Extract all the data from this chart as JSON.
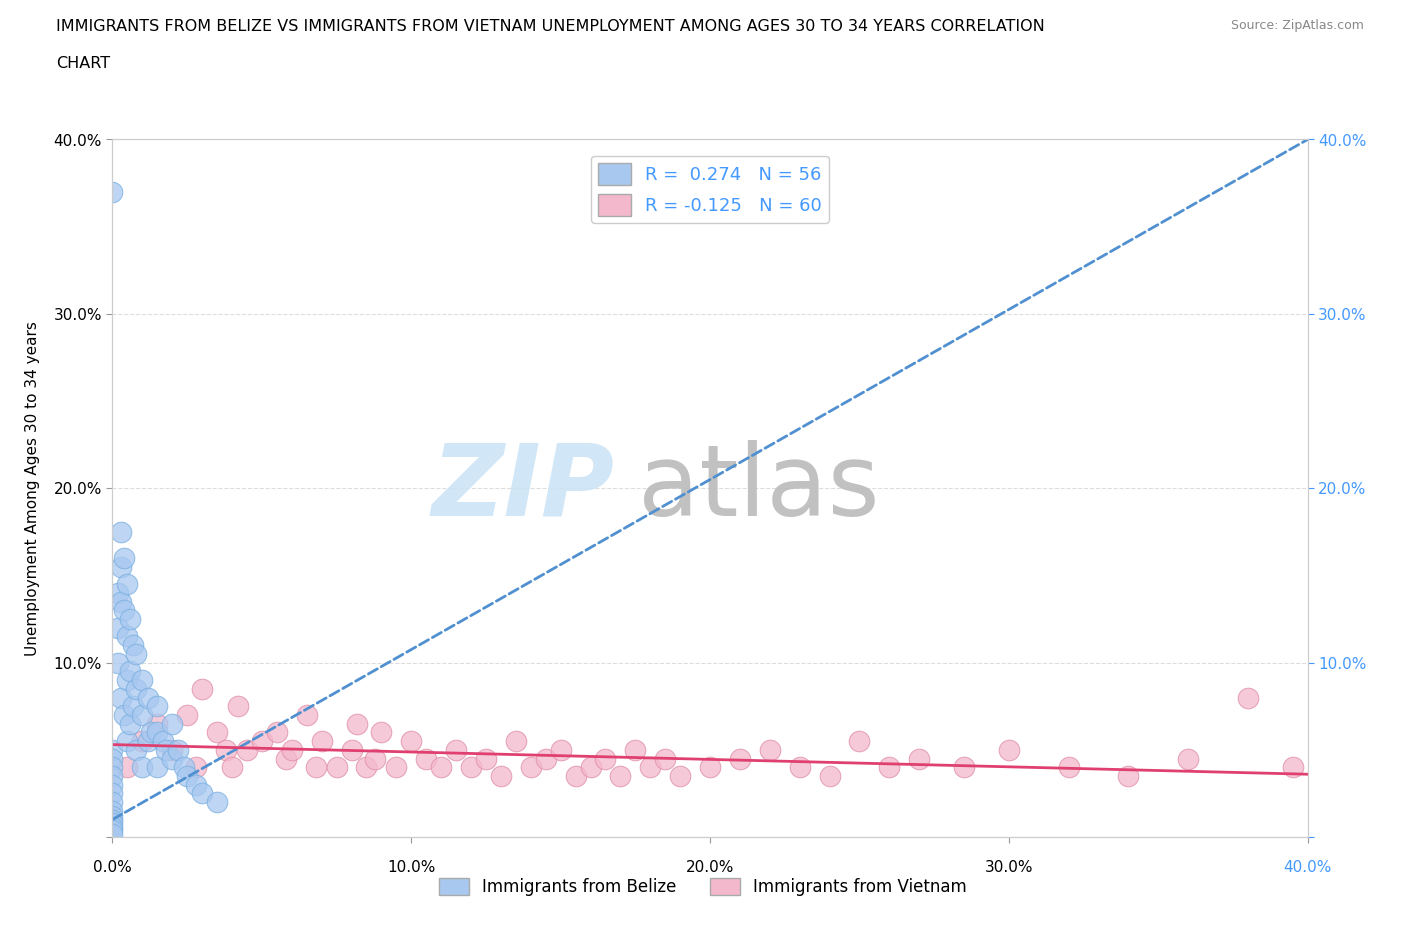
{
  "title_line1": "IMMIGRANTS FROM BELIZE VS IMMIGRANTS FROM VIETNAM UNEMPLOYMENT AMONG AGES 30 TO 34 YEARS CORRELATION",
  "title_line2": "CHART",
  "source": "Source: ZipAtlas.com",
  "ylabel": "Unemployment Among Ages 30 to 34 years",
  "belize_R": 0.274,
  "belize_N": 56,
  "vietnam_R": -0.125,
  "vietnam_N": 60,
  "xlim": [
    0.0,
    0.4
  ],
  "ylim": [
    -0.02,
    0.42
  ],
  "plot_ylim": [
    0.0,
    0.4
  ],
  "xticks": [
    0.0,
    0.1,
    0.2,
    0.3,
    0.4
  ],
  "yticks": [
    0.0,
    0.1,
    0.2,
    0.3,
    0.4
  ],
  "belize_color": "#a8c8f0",
  "belize_edge_color": "#7ab0e0",
  "vietnam_color": "#f4b8cc",
  "vietnam_edge_color": "#e090a8",
  "belize_line_color": "#5090d0",
  "vietnam_line_color": "#e04070",
  "right_axis_color": "#4499ff",
  "watermark_zip_color": "#cce4f5",
  "watermark_atlas_color": "#bbbbbb",
  "belize_x": [
    0.0,
    0.0,
    0.0,
    0.0,
    0.0,
    0.0,
    0.0,
    0.0,
    0.0,
    0.0,
    0.0,
    0.0,
    0.0,
    0.0,
    0.0,
    0.002,
    0.002,
    0.002,
    0.003,
    0.003,
    0.003,
    0.003,
    0.004,
    0.004,
    0.004,
    0.005,
    0.005,
    0.005,
    0.005,
    0.006,
    0.006,
    0.006,
    0.007,
    0.007,
    0.008,
    0.008,
    0.008,
    0.01,
    0.01,
    0.01,
    0.012,
    0.012,
    0.013,
    0.015,
    0.015,
    0.015,
    0.017,
    0.018,
    0.02,
    0.02,
    0.022,
    0.024,
    0.025,
    0.028,
    0.03,
    0.035
  ],
  "belize_y": [
    0.37,
    0.05,
    0.045,
    0.04,
    0.035,
    0.03,
    0.025,
    0.02,
    0.015,
    0.012,
    0.01,
    0.008,
    0.006,
    0.004,
    0.002,
    0.14,
    0.12,
    0.1,
    0.175,
    0.155,
    0.135,
    0.08,
    0.16,
    0.13,
    0.07,
    0.145,
    0.115,
    0.09,
    0.055,
    0.125,
    0.095,
    0.065,
    0.11,
    0.075,
    0.105,
    0.085,
    0.05,
    0.09,
    0.07,
    0.04,
    0.08,
    0.055,
    0.06,
    0.075,
    0.06,
    0.04,
    0.055,
    0.05,
    0.065,
    0.045,
    0.05,
    0.04,
    0.035,
    0.03,
    0.025,
    0.02
  ],
  "vietnam_x": [
    0.005,
    0.01,
    0.015,
    0.02,
    0.025,
    0.028,
    0.03,
    0.035,
    0.038,
    0.04,
    0.042,
    0.045,
    0.05,
    0.055,
    0.058,
    0.06,
    0.065,
    0.068,
    0.07,
    0.075,
    0.08,
    0.082,
    0.085,
    0.088,
    0.09,
    0.095,
    0.1,
    0.105,
    0.11,
    0.115,
    0.12,
    0.125,
    0.13,
    0.135,
    0.14,
    0.145,
    0.15,
    0.155,
    0.16,
    0.165,
    0.17,
    0.175,
    0.18,
    0.185,
    0.19,
    0.2,
    0.21,
    0.22,
    0.23,
    0.24,
    0.25,
    0.26,
    0.27,
    0.285,
    0.3,
    0.32,
    0.34,
    0.36,
    0.38,
    0.395
  ],
  "vietnam_y": [
    0.04,
    0.055,
    0.065,
    0.05,
    0.07,
    0.04,
    0.085,
    0.06,
    0.05,
    0.04,
    0.075,
    0.05,
    0.055,
    0.06,
    0.045,
    0.05,
    0.07,
    0.04,
    0.055,
    0.04,
    0.05,
    0.065,
    0.04,
    0.045,
    0.06,
    0.04,
    0.055,
    0.045,
    0.04,
    0.05,
    0.04,
    0.045,
    0.035,
    0.055,
    0.04,
    0.045,
    0.05,
    0.035,
    0.04,
    0.045,
    0.035,
    0.05,
    0.04,
    0.045,
    0.035,
    0.04,
    0.045,
    0.05,
    0.04,
    0.035,
    0.055,
    0.04,
    0.045,
    0.04,
    0.05,
    0.04,
    0.035,
    0.045,
    0.08,
    0.04
  ],
  "belize_line_x": [
    0.0,
    0.4
  ],
  "belize_line_y": [
    0.01,
    0.4
  ],
  "vietnam_line_x": [
    0.0,
    0.4
  ],
  "vietnam_line_y": [
    0.053,
    0.036
  ]
}
